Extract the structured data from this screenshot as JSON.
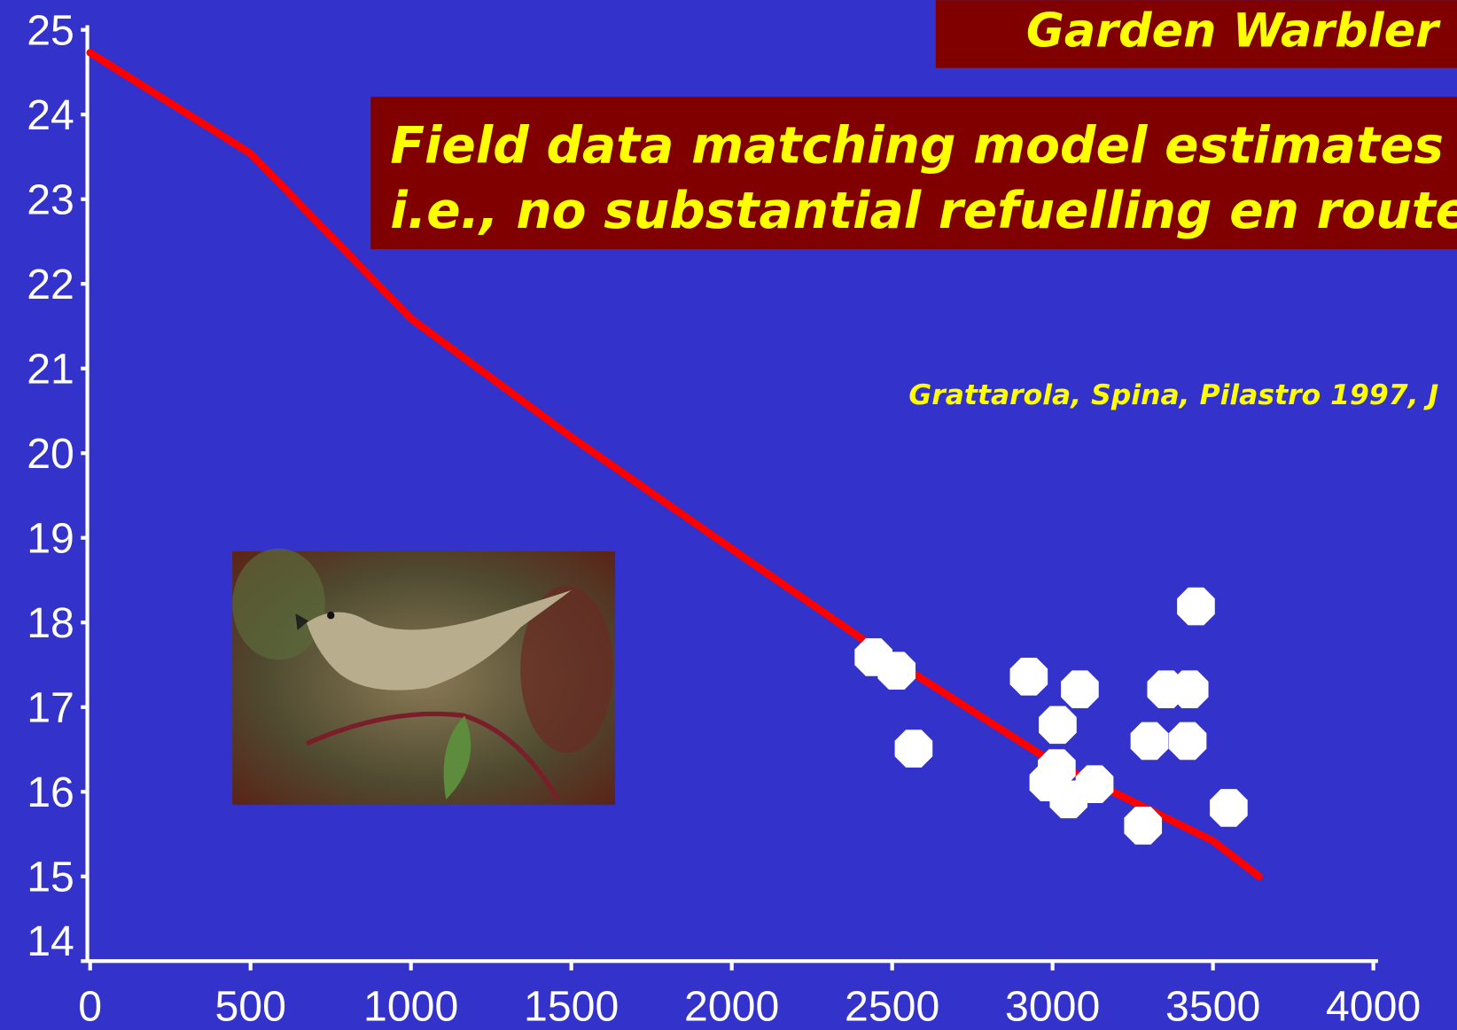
{
  "chart_data": {
    "type": "scatter",
    "title": "Garden Warbler",
    "subtitle": [
      "Field data matching model estimates",
      "i.e., no substantial refuelling en route"
    ],
    "annotation": "Grattarola, Spina, Pilastro 1997, J",
    "xlim": [
      0,
      4000
    ],
    "xticks": [
      0,
      500,
      1000,
      1500,
      2000,
      2500,
      3000,
      3500,
      4000
    ],
    "ylim": [
      14,
      25
    ],
    "yticks": [
      14,
      15,
      16,
      17,
      18,
      19,
      20,
      21,
      22,
      23,
      24,
      25
    ],
    "points": {
      "color": "#ffffff",
      "x": [
        2442,
        2514,
        2567,
        2926,
        3085,
        3016,
        3447,
        3354,
        3427,
        3302,
        3421,
        3013,
        2987,
        3050,
        3131,
        3282,
        3549
      ],
      "y": [
        17.59,
        17.43,
        16.51,
        17.36,
        17.21,
        16.79,
        18.19,
        17.21,
        17.21,
        16.6,
        16.6,
        16.28,
        16.11,
        15.91,
        16.09,
        15.6,
        15.81
      ]
    },
    "line": {
      "color": "#ff0000",
      "x": [
        0,
        500,
        1000,
        1500,
        2000,
        2500,
        3000,
        3500,
        3644
      ],
      "y": [
        24.73,
        23.54,
        21.59,
        20.19,
        18.87,
        17.56,
        16.35,
        15.42,
        15.0
      ]
    }
  }
}
